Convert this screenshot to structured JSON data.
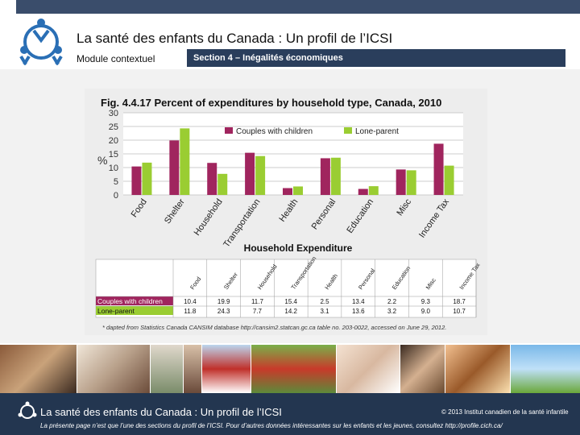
{
  "header": {
    "title": "La santé des enfants du Canada : Un profil de l’ICSI",
    "module_bold": "Module",
    "module_rest": " contextuel",
    "section": "Section 4 – Inégalités économiques"
  },
  "figure": {
    "title": "Fig. 4.4.17  Percent of expenditures by household type, Canada, 2010",
    "source": "* dapted from Statistics Canada CANSIM database http://cansim2.statcan.gc.ca table no. 203-0022, accessed on June 29, 2012."
  },
  "chart_data": {
    "type": "bar",
    "title": "Fig. 4.4.17  Percent of expenditures by household type, Canada, 2010",
    "xlabel": "Household Expenditure",
    "ylabel": "%",
    "ylim": [
      0,
      30
    ],
    "yticks": [
      "0",
      "5",
      "10",
      "15",
      "20",
      "25",
      "30"
    ],
    "categories": [
      "Food",
      "Shelter",
      "Household",
      "Transportation",
      "Health",
      "Personal",
      "Education",
      "Misc",
      "Income Tax"
    ],
    "series": [
      {
        "name": "Couples with children",
        "color": "#a0255e",
        "values": [
          10.4,
          19.9,
          11.7,
          15.4,
          2.5,
          13.4,
          2.2,
          9.3,
          18.7
        ]
      },
      {
        "name": "Lone-parent",
        "color": "#9acd32",
        "values": [
          11.8,
          24.3,
          7.7,
          14.2,
          3.1,
          13.6,
          3.2,
          9.0,
          10.7
        ]
      }
    ],
    "table_values": {
      "couples": [
        "10.4",
        "19.9",
        "11.7",
        "15.4",
        "2.5",
        "13.4",
        "2.2",
        "9.3",
        "18.7"
      ],
      "lone": [
        "11.8",
        "24.3",
        "7.7",
        "14.2",
        "3.1",
        "13.6",
        "3.2",
        "9.0",
        "10.7"
      ]
    },
    "grid": true,
    "legend": "top"
  },
  "footer": {
    "title": "La santé des enfants du Canada : Un profil de l’ICSI",
    "copyright": "© 2013  Institut canadien de la santé infantile",
    "note": "La présente page n’est que l’une des sections du profil de l’ICSI. Pour d’autres données intéressantes sur les enfants et les jeunes, consultez http://profile.cich.ca/"
  },
  "colors": {
    "navy": "#233650",
    "couples": "#a0255e",
    "lone": "#9acd32"
  }
}
